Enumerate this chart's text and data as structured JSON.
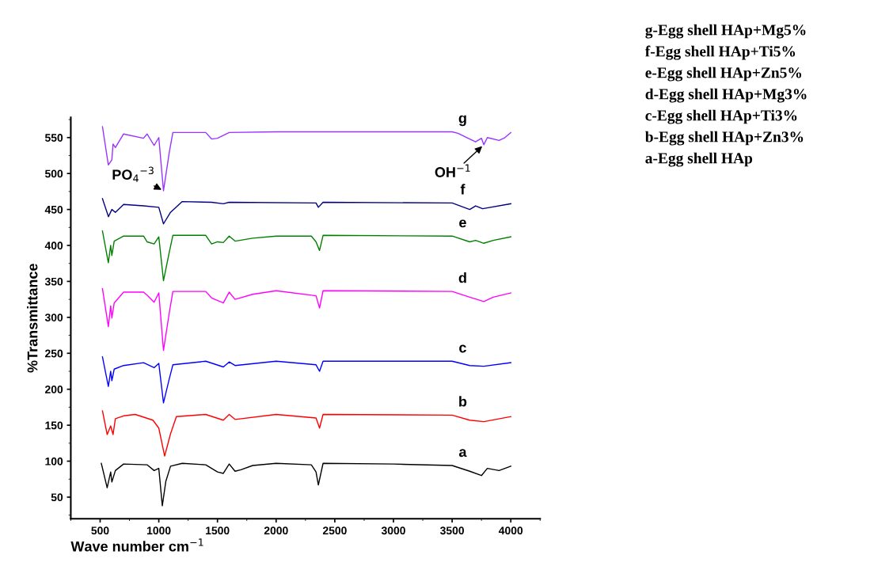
{
  "chart_data": {
    "type": "line",
    "xlabel": "Wave number cm$^{−1}$",
    "ylabel": "%Transmittance",
    "xlim": [
      250,
      4250
    ],
    "ylim": [
      20,
      578
    ],
    "xticks": [
      500,
      1000,
      1500,
      2000,
      2500,
      3000,
      3500,
      4000
    ],
    "yticks": [
      50,
      100,
      150,
      200,
      250,
      300,
      350,
      400,
      450,
      500,
      550
    ],
    "grid": false,
    "legend": false,
    "marker": "none",
    "line_style": "solid",
    "series": [
      {
        "name": "a",
        "color": "#000000",
        "x": [
          510,
          560,
          590,
          600,
          630,
          700,
          900,
          960,
          1000,
          1030,
          1060,
          1100,
          1200,
          1400,
          1450,
          1500,
          1550,
          1600,
          1650,
          1700,
          1800,
          2000,
          2300,
          2340,
          2360,
          2400,
          3000,
          3500,
          3650,
          3750,
          3800,
          3900,
          4000
        ],
        "values": [
          97,
          63,
          85,
          71,
          87,
          96,
          95,
          87,
          90,
          38,
          72,
          93,
          97,
          95,
          90,
          85,
          83,
          96,
          86,
          88,
          94,
          97,
          95,
          85,
          67,
          97,
          96,
          94,
          86,
          80,
          90,
          87,
          93
        ]
      },
      {
        "name": "b",
        "color": "#ff0000",
        "x": [
          520,
          560,
          590,
          610,
          630,
          700,
          800,
          950,
          1000,
          1050,
          1100,
          1150,
          1400,
          1550,
          1600,
          1650,
          2000,
          2340,
          2370,
          2400,
          3500,
          3650,
          3770,
          4000
        ],
        "values": [
          170,
          137,
          149,
          137,
          159,
          163,
          165,
          157,
          146,
          107,
          138,
          162,
          165,
          157,
          165,
          158,
          165,
          160,
          146,
          165,
          164,
          157,
          155,
          162
        ]
      },
      {
        "name": "c",
        "color": "#0000ff",
        "x": [
          520,
          570,
          590,
          600,
          620,
          700,
          870,
          960,
          1000,
          1040,
          1090,
          1120,
          1400,
          1550,
          1600,
          1650,
          2000,
          2340,
          2370,
          2400,
          3500,
          3650,
          3770,
          4000
        ],
        "values": [
          245,
          204,
          225,
          212,
          228,
          233,
          237,
          230,
          236,
          181,
          215,
          234,
          239,
          231,
          238,
          233,
          239,
          234,
          225,
          239,
          239,
          233,
          232,
          237
        ]
      },
      {
        "name": "d",
        "color": "#ff00ff",
        "x": [
          520,
          570,
          590,
          600,
          620,
          700,
          870,
          900,
          960,
          1000,
          1040,
          1090,
          1120,
          1400,
          1450,
          1550,
          1600,
          1650,
          1800,
          2000,
          2340,
          2370,
          2400,
          3500,
          3650,
          3770,
          3850,
          4000
        ],
        "values": [
          340,
          287,
          316,
          299,
          320,
          335,
          335,
          331,
          321,
          334,
          254,
          307,
          336,
          336,
          327,
          320,
          335,
          325,
          332,
          337,
          330,
          313,
          337,
          336,
          328,
          322,
          328,
          334
        ]
      },
      {
        "name": "e",
        "color": "#008000",
        "x": [
          520,
          570,
          590,
          600,
          620,
          700,
          870,
          900,
          960,
          1000,
          1040,
          1090,
          1120,
          1400,
          1450,
          1500,
          1550,
          1600,
          1650,
          1800,
          2000,
          2300,
          2340,
          2370,
          2400,
          3500,
          3650,
          3700,
          3770,
          3850,
          4000
        ],
        "values": [
          420,
          376,
          400,
          386,
          406,
          413,
          413,
          405,
          402,
          412,
          351,
          391,
          414,
          414,
          402,
          405,
          404,
          413,
          406,
          410,
          413,
          413,
          405,
          393,
          414,
          413,
          405,
          407,
          403,
          407,
          412
        ]
      },
      {
        "name": "f",
        "color": "#000080",
        "x": [
          520,
          571,
          600,
          630,
          700,
          870,
          1000,
          1040,
          1100,
          1200,
          1450,
          1550,
          1600,
          2340,
          2360,
          2400,
          3500,
          3650,
          3700,
          3760,
          4000
        ],
        "values": [
          465,
          440,
          450,
          446,
          457,
          455,
          453,
          430,
          446,
          461,
          460,
          458,
          460,
          459,
          453,
          460,
          459,
          450,
          455,
          451,
          458
        ]
      },
      {
        "name": "g",
        "color": "#9933ff",
        "x": [
          520,
          570,
          600,
          610,
          630,
          700,
          870,
          900,
          960,
          1000,
          1040,
          1090,
          1120,
          1400,
          1450,
          1500,
          1600,
          2000,
          3500,
          3550,
          3650,
          3700,
          3750,
          3770,
          3800,
          3900,
          3950,
          4000
        ],
        "values": [
          565,
          512,
          519,
          541,
          536,
          555,
          549,
          555,
          539,
          550,
          476,
          530,
          557,
          557,
          548,
          549,
          557,
          558,
          558,
          556,
          548,
          544,
          549,
          540,
          550,
          546,
          550,
          557
        ]
      }
    ],
    "annotations": [
      {
        "text": "PO$_{4}$$^{−3}$",
        "x": 1040,
        "y": 476
      },
      {
        "text": "OH$^{−1}$",
        "x": 3770,
        "y": 540
      },
      "g-Egg shell HAp+Mg5%",
      "f-Egg shell HAp+Ti5%",
      "e-Egg shell HAp+Zn5%",
      "d-Egg shell HAp+Mg3%",
      "c-Egg shell HAp+Ti3%",
      "b-Egg shell HAp+Zn3%",
      "a-Egg shell HAp"
    ]
  }
}
